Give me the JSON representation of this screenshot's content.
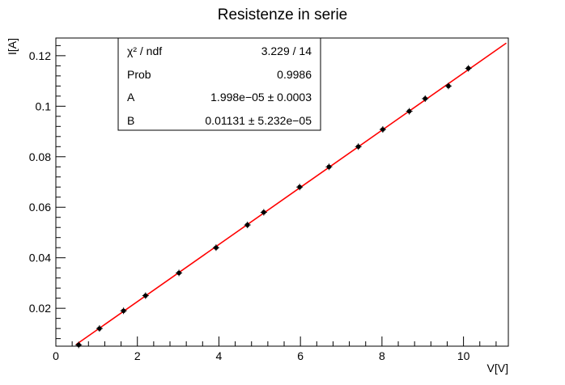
{
  "chart_data": {
    "type": "scatter",
    "title": "Resistenze in serie",
    "xlabel": "V[V]",
    "ylabel": "I[A]",
    "xlim": [
      0,
      11.1
    ],
    "ylim": [
      0.005,
      0.127
    ],
    "x_ticks": [
      0,
      2,
      4,
      6,
      8,
      10
    ],
    "y_ticks": [
      0.02,
      0.04,
      0.06,
      0.08,
      0.1,
      0.12
    ],
    "x_tick_labels": [
      "0",
      "2",
      "4",
      "6",
      "8",
      "10"
    ],
    "y_tick_labels": [
      "0.02",
      "0.04",
      "0.06",
      "0.08",
      "0.1",
      "0.12"
    ],
    "grid": false,
    "marker_color": "#000000",
    "fit_color": "#ff0000",
    "series": [
      {
        "x": [
          0.56,
          1.07,
          1.66,
          2.2,
          3.02,
          3.93,
          4.7,
          5.1,
          5.98,
          6.7,
          7.42,
          8.02,
          8.67,
          9.06,
          9.63,
          10.12
        ],
        "y": [
          0.0055,
          0.012,
          0.019,
          0.025,
          0.034,
          0.044,
          0.053,
          0.058,
          0.068,
          0.076,
          0.084,
          0.0908,
          0.098,
          0.103,
          0.108,
          0.115
        ]
      }
    ],
    "fit": {
      "slope": 0.01131,
      "intercept": 2e-05,
      "x_range": [
        0.5,
        11.05
      ]
    },
    "stats_box": {
      "rows": [
        {
          "label": "χ² / ndf",
          "value": "3.229 / 14"
        },
        {
          "label": "Prob",
          "value": "0.9986"
        },
        {
          "label": "A",
          "value": "1.998e−05 ± 0.0003"
        },
        {
          "label": "B",
          "value": "0.01131 ± 5.232e−05"
        }
      ]
    }
  }
}
